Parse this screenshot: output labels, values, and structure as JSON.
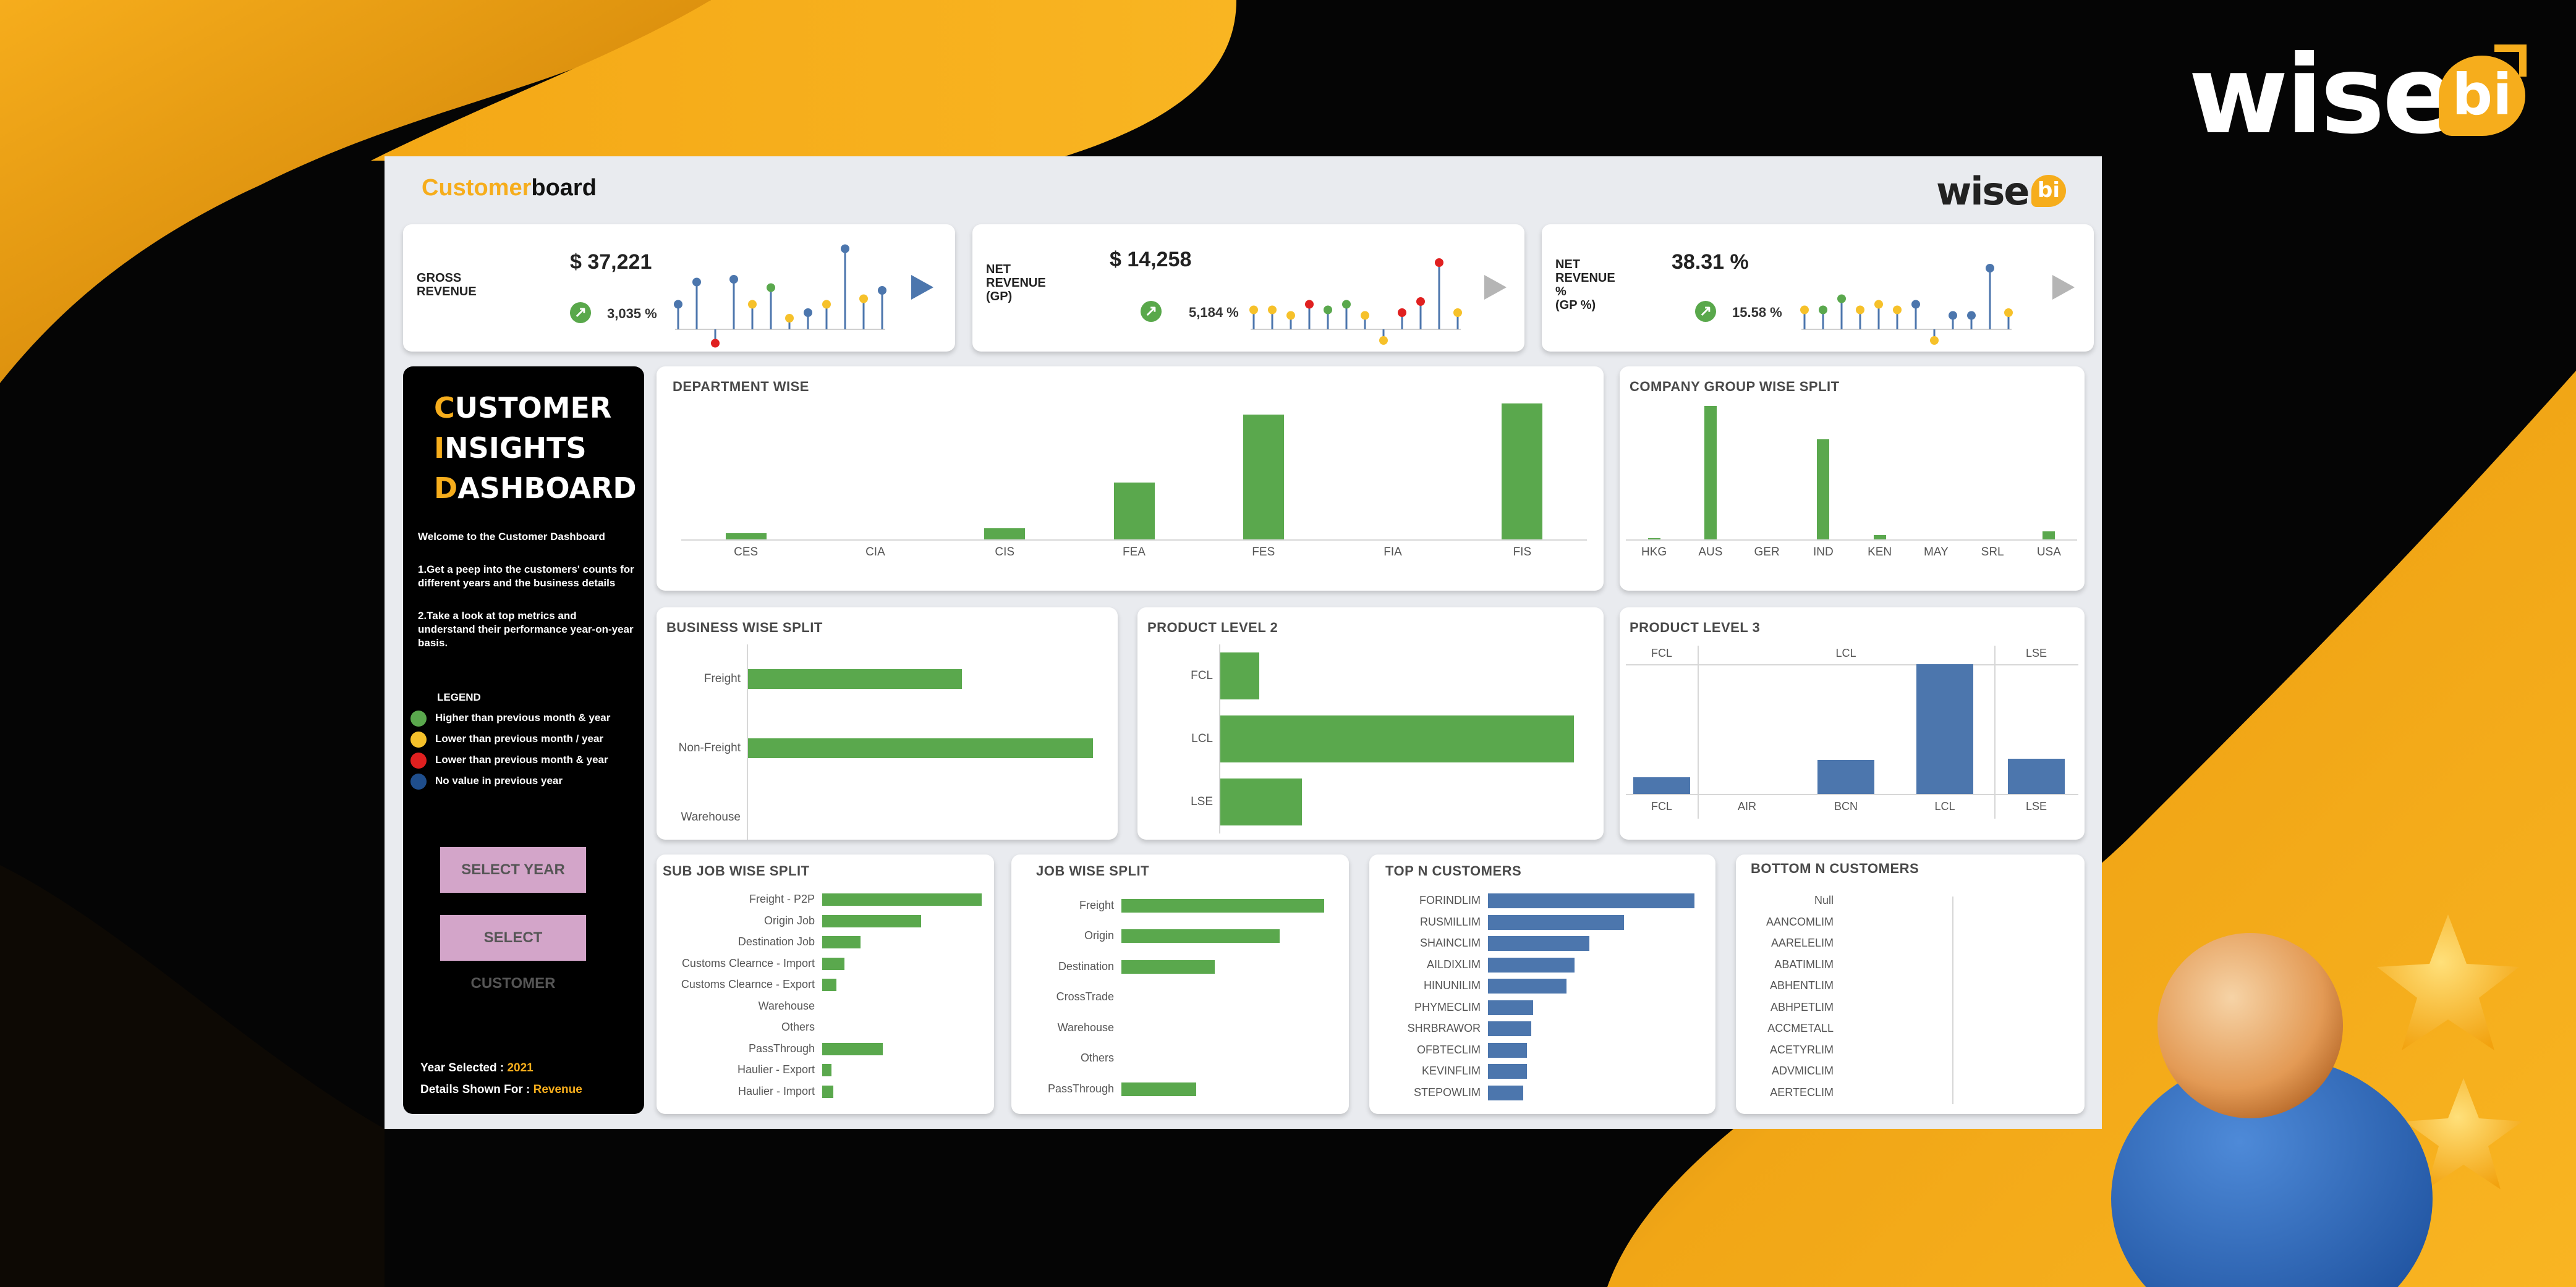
{
  "colors": {
    "accent": "#f6ad1c",
    "green": "#5aa84d",
    "blue": "#4c76ad",
    "red": "#e02020",
    "yellow": "#f6c12a",
    "dark_blue": "#1f4e8c",
    "button": "#d3a5c9"
  },
  "brand": {
    "name": "wise",
    "badge": "bi"
  },
  "header": {
    "title_accent": "Customer",
    "title_rest": "board",
    "logo_name": "wise",
    "logo_badge": "bi"
  },
  "kpis": [
    {
      "label": "GROSS\nREVENUE",
      "value": "$ 37,221",
      "change": "3,035 %",
      "change_icon": "arrow-up-right-icon",
      "play_icon": "play-icon",
      "play_color": "#4c76ad",
      "sparkline": [
        {
          "v": 0.45,
          "c": "#4c76ad"
        },
        {
          "v": 0.85,
          "c": "#4c76ad"
        },
        {
          "v": -0.25,
          "c": "#e02020"
        },
        {
          "v": 0.9,
          "c": "#4c76ad"
        },
        {
          "v": 0.45,
          "c": "#f6c12a"
        },
        {
          "v": 0.75,
          "c": "#5aa84d"
        },
        {
          "v": 0.2,
          "c": "#f6c12a"
        },
        {
          "v": 0.3,
          "c": "#4c76ad"
        },
        {
          "v": 0.45,
          "c": "#f6c12a"
        },
        {
          "v": 1.45,
          "c": "#4c76ad"
        },
        {
          "v": 0.55,
          "c": "#f6c12a"
        },
        {
          "v": 0.7,
          "c": "#4c76ad"
        }
      ]
    },
    {
      "label": "NET\nREVENUE\n(GP)",
      "value": "$ 14,258",
      "change": "5,184 %",
      "change_icon": "arrow-up-right-icon",
      "play_icon": "play-icon",
      "play_color": "#b5b5b5",
      "sparkline": [
        {
          "v": 0.35,
          "c": "#f6c12a"
        },
        {
          "v": 0.35,
          "c": "#f6c12a"
        },
        {
          "v": 0.25,
          "c": "#f6c12a"
        },
        {
          "v": 0.45,
          "c": "#e02020"
        },
        {
          "v": 0.35,
          "c": "#5aa84d"
        },
        {
          "v": 0.45,
          "c": "#5aa84d"
        },
        {
          "v": 0.25,
          "c": "#f6c12a"
        },
        {
          "v": -0.2,
          "c": "#f6c12a"
        },
        {
          "v": 0.3,
          "c": "#e02020"
        },
        {
          "v": 0.5,
          "c": "#e02020"
        },
        {
          "v": 1.2,
          "c": "#e02020"
        },
        {
          "v": 0.3,
          "c": "#f6c12a"
        }
      ]
    },
    {
      "label": "NET\nREVENUE\n%\n(GP %)",
      "value": "38.31 %",
      "change": "15.58 %",
      "change_icon": "arrow-up-right-icon",
      "play_icon": "play-icon",
      "play_color": "#b5b5b5",
      "sparkline": [
        {
          "v": 0.35,
          "c": "#f6c12a"
        },
        {
          "v": 0.35,
          "c": "#5aa84d"
        },
        {
          "v": 0.55,
          "c": "#5aa84d"
        },
        {
          "v": 0.35,
          "c": "#f6c12a"
        },
        {
          "v": 0.45,
          "c": "#f6c12a"
        },
        {
          "v": 0.35,
          "c": "#f6c12a"
        },
        {
          "v": 0.45,
          "c": "#4c76ad"
        },
        {
          "v": -0.2,
          "c": "#f6c12a"
        },
        {
          "v": 0.25,
          "c": "#4c76ad"
        },
        {
          "v": 0.25,
          "c": "#4c76ad"
        },
        {
          "v": 1.1,
          "c": "#4c76ad"
        },
        {
          "v": 0.3,
          "c": "#f6c12a"
        }
      ]
    }
  ],
  "sidebar": {
    "title_lines": [
      {
        "first": "C",
        "rest": "USTOMER"
      },
      {
        "first": "I",
        "rest": "NSIGHTS"
      },
      {
        "first": "D",
        "rest": "ASHBOARD"
      }
    ],
    "welcome": "Welcome to the Customer Dashboard",
    "point1": "1.Get a peep into the customers' counts for different years and the business details",
    "point2": "2.Take a look at top metrics and understand their performance year-on-year basis.",
    "legend_title": "LEGEND",
    "legend": [
      {
        "label": "Higher than previous month & year",
        "color": "#5aa84d"
      },
      {
        "label": "Lower than previous month / year",
        "color": "#f6c12a"
      },
      {
        "label": "Lower than previous month & year",
        "color": "#e02020"
      },
      {
        "label": "No value in previous year",
        "color": "#1f4e8c"
      }
    ],
    "btn_year": "SELECT YEAR",
    "btn_customer": "SELECT CUSTOMER",
    "year_label": "Year Selected : ",
    "year_value": "2021",
    "details_label": "Details Shown For : ",
    "details_value": "Revenue"
  },
  "titles": {
    "department": "DEPARTMENT WISE",
    "company": "COMPANY GROUP WISE SPLIT",
    "business": "BUSINESS WISE SPLIT",
    "product2": "PRODUCT LEVEL 2",
    "product3": "PRODUCT LEVEL 3",
    "subjob": "SUB JOB WISE SPLIT",
    "job": "JOB WISE SPLIT",
    "topn": "TOP N CUSTOMERS",
    "bottomn": "BOTTOM N CUSTOMERS"
  },
  "chart_data": [
    {
      "type": "bar",
      "id": "department",
      "title": "DEPARTMENT WISE",
      "categories": [
        "CES",
        "CIA",
        "CIS",
        "FEA",
        "FES",
        "FIA",
        "FIS"
      ],
      "values": [
        4,
        0,
        7,
        36,
        79,
        0,
        86
      ],
      "ylim": [
        0,
        90
      ]
    },
    {
      "type": "bar",
      "id": "company",
      "title": "COMPANY GROUP WISE SPLIT",
      "categories": [
        "HKG",
        "AUS",
        "GER",
        "IND",
        "KEN",
        "MAY",
        "SRL",
        "USA"
      ],
      "values": [
        1,
        96,
        0,
        72,
        3,
        0,
        0,
        6
      ],
      "ylim": [
        0,
        100
      ]
    },
    {
      "type": "bar",
      "id": "business",
      "orientation": "horizontal",
      "title": "BUSINESS WISE SPLIT",
      "categories": [
        "Freight",
        "Non-Freight",
        "Warehouse"
      ],
      "values": [
        62,
        100,
        0
      ],
      "ylim": [
        0,
        100
      ]
    },
    {
      "type": "bar",
      "id": "product2",
      "orientation": "horizontal",
      "title": "PRODUCT LEVEL 2",
      "categories": [
        "FCL",
        "LCL",
        "LSE"
      ],
      "values": [
        11,
        100,
        23
      ],
      "ylim": [
        0,
        100
      ]
    },
    {
      "type": "bar",
      "id": "product3",
      "title": "PRODUCT LEVEL 3",
      "groups": [
        {
          "name": "FCL",
          "categories": [
            "FCL"
          ]
        },
        {
          "name": "LCL",
          "categories": [
            "AIR",
            "BCN",
            "LCL"
          ]
        },
        {
          "name": "LSE",
          "categories": [
            "LSE"
          ]
        }
      ],
      "categories": [
        "FCL",
        "AIR",
        "BCN",
        "LCL",
        "LSE"
      ],
      "values": [
        13,
        0,
        26,
        100,
        27
      ],
      "ylim": [
        0,
        100
      ]
    },
    {
      "type": "bar",
      "id": "subjob",
      "orientation": "horizontal",
      "title": "SUB JOB WISE SPLIT",
      "categories": [
        "Freight - P2P",
        "Origin Job",
        "Destination Job",
        "Customs Clearnce - Import",
        "Customs Clearnce - Export",
        "Warehouse",
        "Others",
        "PassThrough",
        "Haulier - Export",
        "Haulier - Import"
      ],
      "values": [
        100,
        62,
        24,
        14,
        9,
        0,
        0,
        38,
        6,
        7
      ],
      "ylim": [
        0,
        100
      ]
    },
    {
      "type": "bar",
      "id": "job",
      "orientation": "horizontal",
      "title": "JOB WISE SPLIT",
      "categories": [
        "Freight",
        "Origin",
        "Destination",
        "CrossTrade",
        "Warehouse",
        "Others",
        "PassThrough"
      ],
      "values": [
        100,
        78,
        46,
        0,
        0,
        0,
        37
      ],
      "ylim": [
        0,
        100
      ]
    },
    {
      "type": "bar",
      "id": "topn",
      "orientation": "horizontal",
      "title": "TOP N CUSTOMERS",
      "categories": [
        "FORINDLIM",
        "RUSMILLIM",
        "SHAINCLIM",
        "AILDIXLIM",
        "HINUNILIM",
        "PHYMECLIM",
        "SHRBRAWOR",
        "OFBTECLIM",
        "KEVINFLIM",
        "STEPOWLIM"
      ],
      "values": [
        100,
        66,
        49,
        42,
        38,
        22,
        21,
        19,
        19,
        17
      ],
      "ylim": [
        0,
        100
      ]
    },
    {
      "type": "bar",
      "id": "bottomn",
      "orientation": "horizontal",
      "title": "BOTTOM N CUSTOMERS",
      "categories": [
        "Null",
        "AANCOMLIM",
        "AARELELIM",
        "ABATIMLIM",
        "ABHENTLIM",
        "ABHPETLIM",
        "ACCMETALL",
        "ACETYRLIM",
        "ADVMICLIM",
        "AERTECLIM"
      ],
      "values": [
        0,
        0,
        0,
        0,
        0,
        0,
        0,
        0,
        0,
        0
      ],
      "ylim": [
        0,
        100
      ]
    }
  ]
}
